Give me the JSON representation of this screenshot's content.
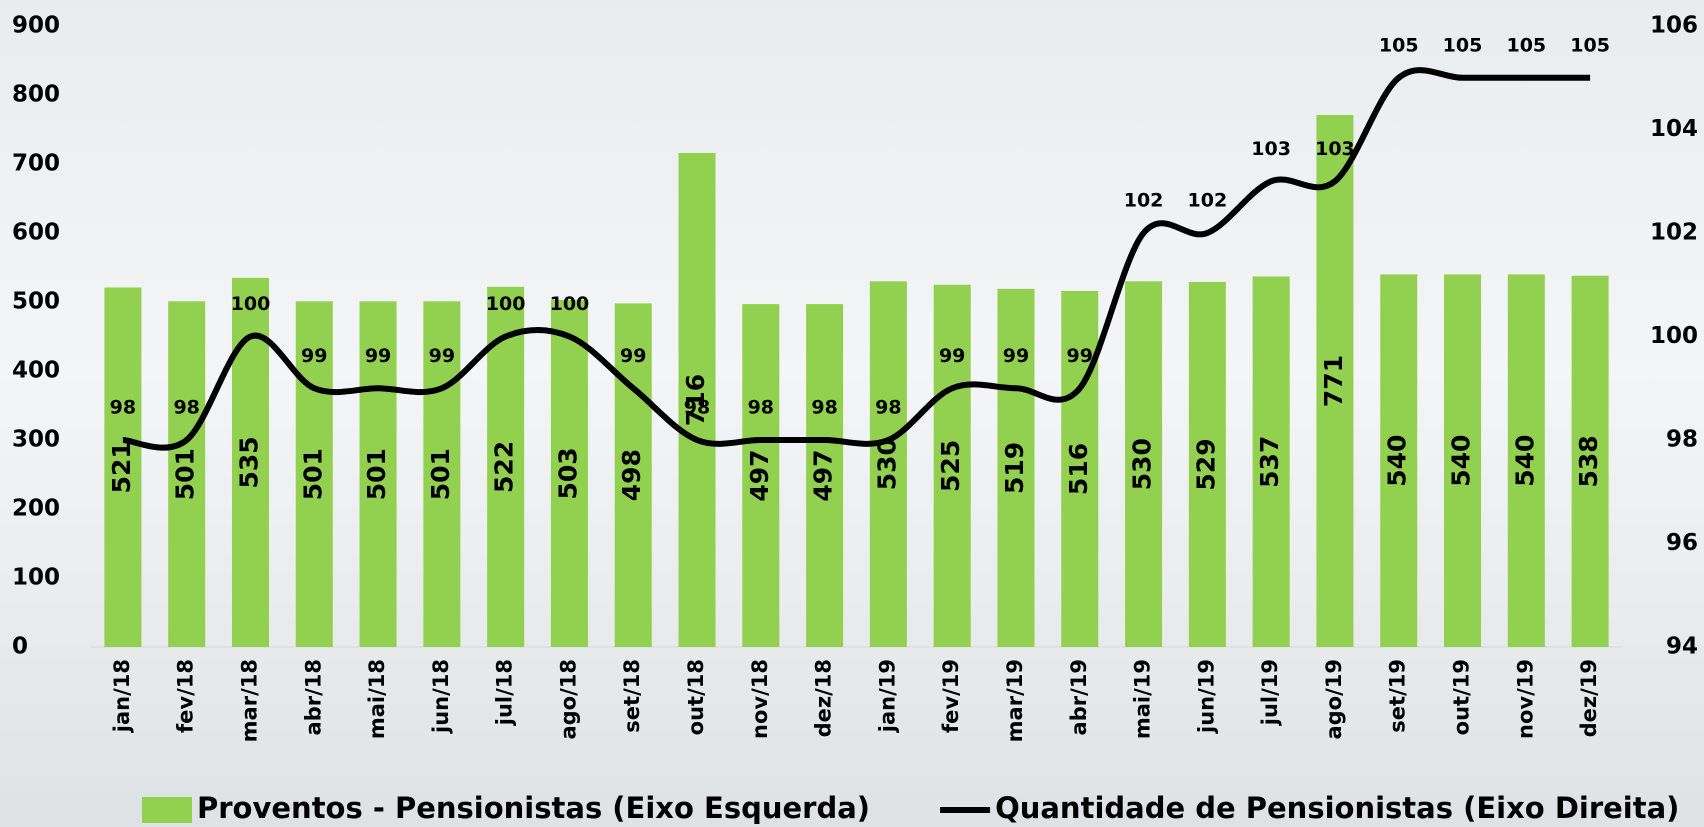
{
  "chart_data": {
    "type": "bar",
    "categories": [
      "jan/18",
      "fev/18",
      "mar/18",
      "abr/18",
      "mai/18",
      "jun/18",
      "jul/18",
      "ago/18",
      "set/18",
      "out/18",
      "nov/18",
      "dez/18",
      "jan/19",
      "fev/19",
      "mar/19",
      "abr/19",
      "mai/19",
      "jun/19",
      "jul/19",
      "ago/19",
      "set/19",
      "out/19",
      "nov/19",
      "dez/19"
    ],
    "series": [
      {
        "name": "Proventos - Pensionistas (Eixo Esquerda)",
        "color": "#92d050",
        "type": "bar",
        "values": [
          521,
          501,
          535,
          501,
          501,
          501,
          522,
          503,
          498,
          716,
          497,
          497,
          530,
          525,
          519,
          516,
          530,
          529,
          537,
          771,
          540,
          540,
          540,
          538
        ]
      },
      {
        "name": "Quantidade de Pensionistas (Eixo Direita)",
        "color": "#000000",
        "type": "line",
        "axis": "y2",
        "values": [
          98,
          98,
          100,
          99,
          99,
          99,
          100,
          100,
          99,
          98,
          98,
          98,
          98,
          99,
          99,
          99,
          102,
          102,
          103,
          103,
          105,
          105,
          105,
          105
        ]
      }
    ],
    "ylim": [
      0,
      900
    ],
    "yticks": [
      0,
      100,
      200,
      300,
      400,
      500,
      600,
      700,
      800,
      900
    ],
    "y2lim": [
      94,
      106
    ],
    "y2ticks": [
      94,
      96,
      98,
      100,
      102,
      104,
      106
    ],
    "legend": "bottom"
  }
}
